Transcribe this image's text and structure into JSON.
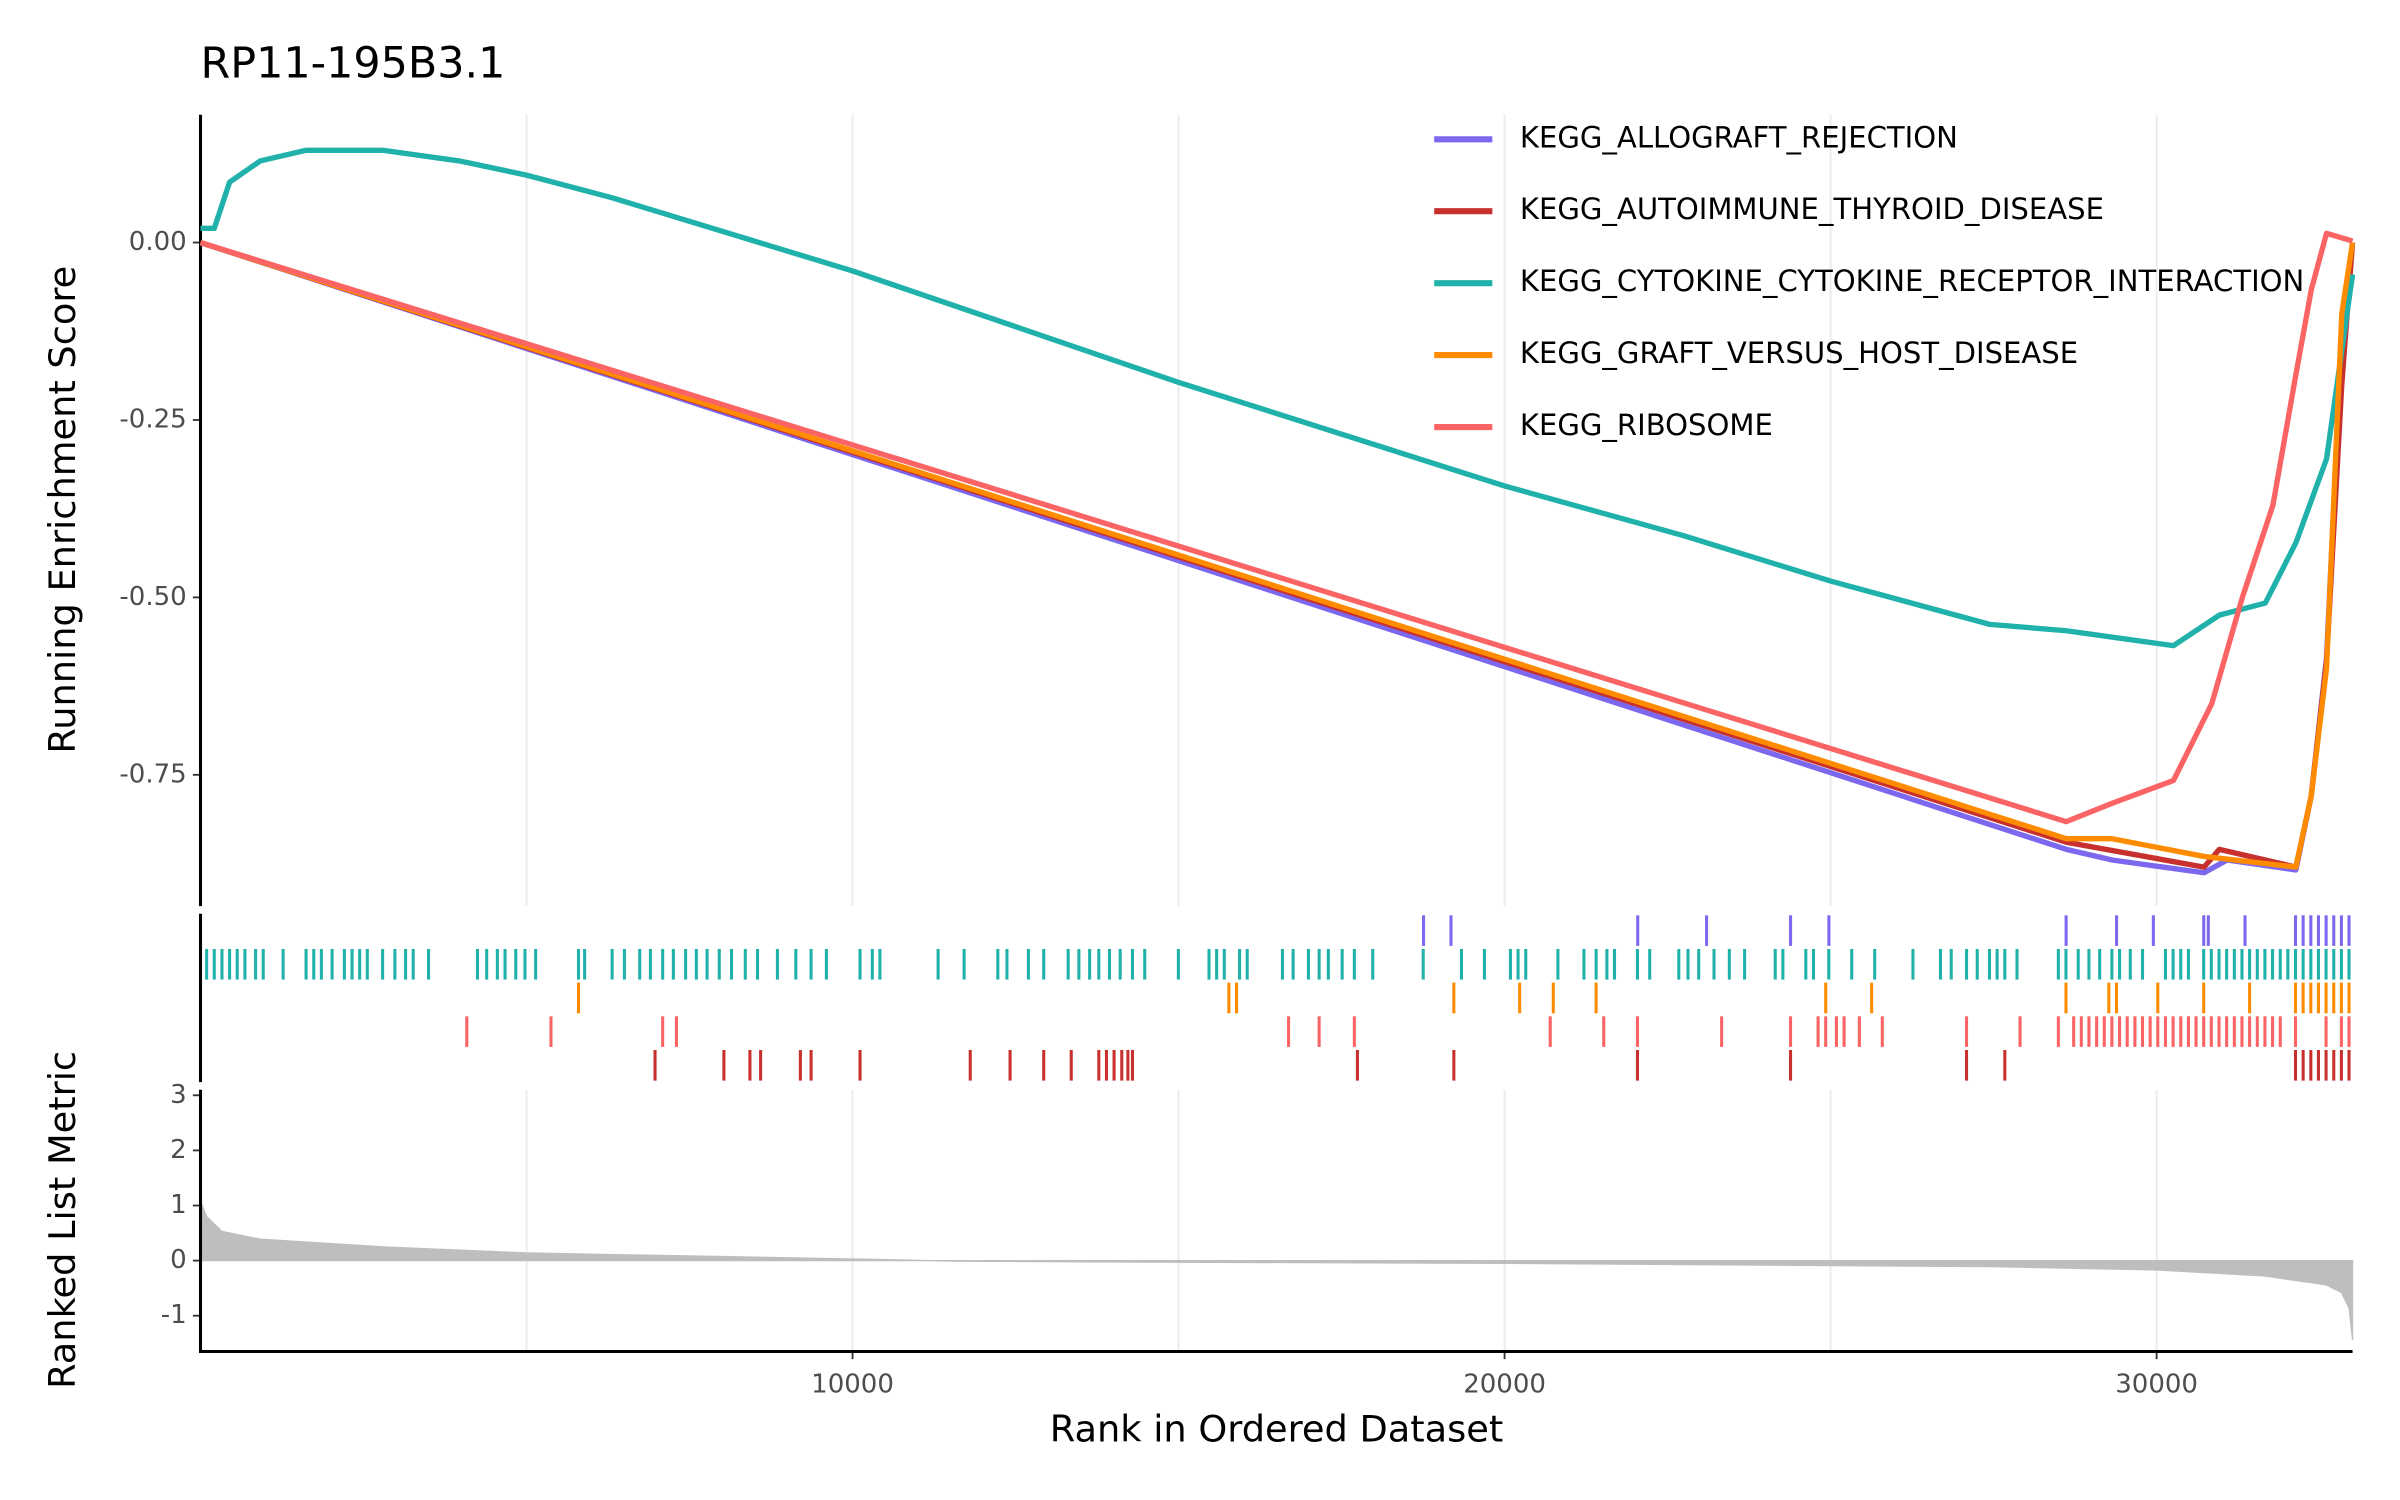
{
  "chart_data": [
    {
      "type": "line",
      "title": "RP11-195B3.1",
      "ylabel": "Running Enrichment Score",
      "xlim": [
        0,
        33005
      ],
      "ylim": [
        -0.935,
        0.18
      ],
      "yticks": [
        {
          "value": 0,
          "label": "0.00"
        },
        {
          "value": -0.25,
          "label": "-0.25"
        },
        {
          "value": -0.5,
          "label": "-0.50"
        },
        {
          "value": -0.75,
          "label": "-0.75"
        }
      ],
      "xgrid": [
        5000,
        10000,
        15000,
        20000,
        25000,
        30000
      ],
      "legend": "top-right",
      "series": [
        {
          "name": "KEGG_ALLOGRAFT_REJECTION",
          "color": "#7b68ee",
          "x": [
            0,
            28615,
            29319,
            30727,
            31080,
            32136,
            32371,
            32606,
            32840,
            33005
          ],
          "values": [
            0,
            -0.855,
            -0.87,
            -0.888,
            -0.87,
            -0.884,
            -0.78,
            -0.585,
            -0.132,
            0
          ]
        },
        {
          "name": "KEGG_AUTOIMMUNE_THYROID_DISEASE",
          "color": "#c8302e",
          "x": [
            0,
            28615,
            30727,
            30962,
            32136,
            32371,
            32606,
            32840,
            33005
          ],
          "values": [
            0,
            -0.845,
            -0.88,
            -0.855,
            -0.88,
            -0.78,
            -0.59,
            -0.2,
            0
          ]
        },
        {
          "name": "KEGG_CYTOKINE_CYTOKINE_RECEPTOR_INTERACTION",
          "color": "#20b2aa",
          "x": [
            0,
            211,
            446,
            915,
            1620,
            2793,
            3967,
            5000,
            6315,
            10000,
            15000,
            20000,
            22746,
            25000,
            27441,
            28615,
            30258,
            30962,
            31667,
            32136,
            32606,
            33005
          ],
          "values": [
            0.02,
            0.02,
            0.085,
            0.115,
            0.13,
            0.13,
            0.115,
            0.095,
            0.063,
            -0.04,
            -0.197,
            -0.343,
            -0.413,
            -0.477,
            -0.538,
            -0.547,
            -0.568,
            -0.525,
            -0.508,
            -0.423,
            -0.305,
            -0.045
          ]
        },
        {
          "name": "KEGG_GRAFT_VERSUS_HOST_DISEASE",
          "color": "#ff8c00",
          "x": [
            0,
            28615,
            29319,
            30727,
            32136,
            32371,
            32606,
            32840,
            33005
          ],
          "values": [
            0,
            -0.84,
            -0.84,
            -0.865,
            -0.88,
            -0.78,
            -0.6,
            -0.1,
            0
          ]
        },
        {
          "name": "KEGG_RIBOSOME",
          "color": "#fa6464",
          "x": [
            0,
            28615,
            29319,
            30258,
            30845,
            31315,
            31784,
            32136,
            32371,
            32606,
            33005
          ],
          "values": [
            0,
            -0.816,
            -0.79,
            -0.758,
            -0.65,
            -0.5,
            -0.37,
            -0.186,
            -0.067,
            0.013,
            0.002
          ]
        }
      ]
    },
    {
      "type": "rug",
      "xlim": [
        0,
        33005
      ],
      "series": [
        {
          "color": "#7b68ee",
          "x": [
            18757,
            19178,
            22042,
            23098,
            24386,
            24974,
            28612,
            29386,
            29950,
            30723,
            30793,
            31356,
            32130,
            32247,
            32365,
            32482,
            32600,
            32717,
            32834,
            32951
          ]
        },
        {
          "color": "#20b2aa",
          "x": [
            94,
            211,
            329,
            446,
            563,
            681,
            845,
            962,
            1267,
            1619,
            1737,
            1854,
            2018,
            2206,
            2324,
            2441,
            2558,
            2793,
            2981,
            3145,
            3262,
            3497,
            4248,
            4389,
            4553,
            4671,
            4835,
            4976,
            5140,
            5797,
            5891,
            6313,
            6501,
            6736,
            6900,
            7088,
            7252,
            7440,
            7604,
            7769,
            7956,
            8144,
            8355,
            8543,
            8848,
            9130,
            9364,
            9599,
            10115,
            10303,
            10420,
            11312,
            11711,
            12228,
            12368,
            12697,
            12932,
            13307,
            13471,
            13636,
            13777,
            13941,
            14105,
            14293,
            14481,
            14997,
            15467,
            15584,
            15701,
            15936,
            16053,
            16593,
            16757,
            16992,
            17156,
            17297,
            17509,
            17696,
            17978,
            18752,
            19339,
            19691,
            20090,
            20207,
            20325,
            20818,
            21217,
            21404,
            21569,
            21686,
            22038,
            22226,
            22672,
            22813,
            22977,
            23212,
            23447,
            23681,
            24151,
            24268,
            24620,
            24738,
            24972,
            25324,
            25676,
            26263,
            26685,
            26850,
            27085,
            27249,
            27437,
            27554,
            27672,
            27859,
            28493,
            28610,
            28798,
            28962,
            29127,
            29314,
            29432,
            29596,
            29784,
            30136,
            30253,
            30370,
            30488,
            30722,
            30839,
            30957,
            31074,
            31192,
            31309,
            31426,
            31544,
            31661,
            31778,
            31896,
            32013,
            32130,
            32247,
            32365,
            32482,
            32599,
            32717,
            32834,
            32951
          ]
        },
        {
          "color": "#ff8c00",
          "x": [
            5797,
            15772,
            15889,
            19222,
            20231,
            20747,
            21404,
            24925,
            25629,
            28610,
            29267,
            29385,
            30018,
            30722,
            31426,
            32130,
            32247,
            32365,
            32482,
            32599,
            32717,
            32834,
            32951
          ]
        },
        {
          "color": "#fa6464",
          "x": [
            4084,
            5375,
            7088,
            7299,
            16687,
            17156,
            17696,
            20700,
            21521,
            22038,
            23329,
            24386,
            24808,
            24925,
            25089,
            25207,
            25441,
            25793,
            27085,
            27906,
            28493,
            28728,
            28845,
            28962,
            29080,
            29197,
            29314,
            29432,
            29549,
            29667,
            29784,
            29901,
            30018,
            30136,
            30253,
            30370,
            30488,
            30605,
            30722,
            30839,
            30957,
            31074,
            31192,
            31309,
            31426,
            31544,
            31661,
            31778,
            31896,
            32130,
            32599,
            32834,
            32951
          ]
        },
        {
          "color": "#c8302e",
          "x": [
            6971,
            8027,
            8426,
            8590,
            9200,
            9364,
            10115,
            11805,
            12416,
            12932,
            13354,
            13777,
            13894,
            14011,
            14129,
            14223,
            14293,
            17743,
            19222,
            22038,
            24386,
            27085,
            27672,
            32130,
            32247,
            32365,
            32482,
            32599,
            32717,
            32834,
            32951
          ]
        }
      ]
    },
    {
      "type": "area",
      "ylabel": "Ranked List Metric",
      "xlabel": "Rank in Ordered Dataset",
      "color": "#bebebe",
      "xlim": [
        0,
        33005
      ],
      "ylim": [
        -1.65,
        3.1
      ],
      "yticks": [
        3,
        2,
        1,
        0,
        -1
      ],
      "xticks": [
        10000,
        20000,
        30000
      ],
      "xgrid": [
        5000,
        10000,
        15000,
        20000,
        25000,
        30000
      ],
      "x": [
        0,
        94,
        329,
        915,
        2793,
        5000,
        10000,
        10500,
        11500,
        15000,
        20000,
        27441,
        30000,
        31661,
        32599,
        32834,
        32951,
        33005
      ],
      "values": [
        1.08,
        0.8,
        0.53,
        0.39,
        0.25,
        0.14,
        0.03,
        0.02,
        -0.01,
        -0.03,
        -0.05,
        -0.11,
        -0.17,
        -0.28,
        -0.44,
        -0.58,
        -0.86,
        -1.44
      ]
    }
  ]
}
